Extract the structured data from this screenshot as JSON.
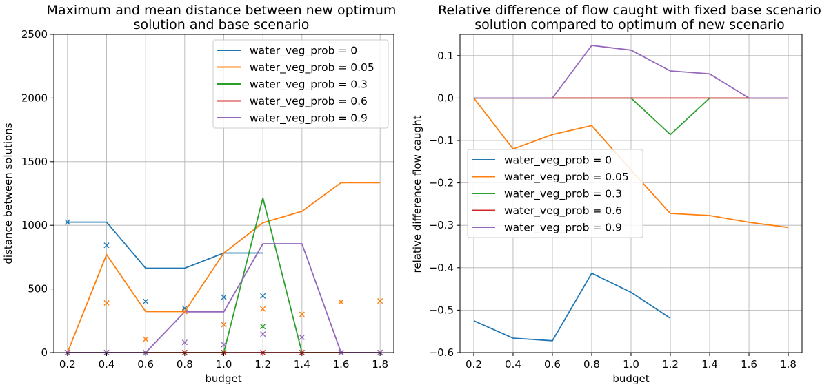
{
  "chart_data": [
    {
      "type": "line",
      "title_lines": [
        "Maximum and mean distance between new optimum",
        "solution and base scenario"
      ],
      "xlabel": "budget",
      "ylabel": "distance between solutions",
      "xlim": [
        0.13,
        1.87
      ],
      "ylim": [
        0,
        2500
      ],
      "xticks": [
        "0.2",
        "0.4",
        "0.6",
        "0.8",
        "1.0",
        "1.2",
        "1.4",
        "1.6",
        "1.8"
      ],
      "yticks": [
        "0",
        "500",
        "1000",
        "1500",
        "2000",
        "2500"
      ],
      "grid": true,
      "legend_position": "top-right",
      "series": [
        {
          "name": "water_veg_prob = 0",
          "color": "#1f77b4",
          "x": [
            0.2,
            0.4,
            0.6,
            0.8,
            1.0,
            1.2
          ],
          "max": [
            1025,
            1025,
            663,
            663,
            782,
            782
          ],
          "mean_x": [
            0.2,
            0.4,
            0.6,
            0.8,
            1.0,
            1.2
          ],
          "mean": [
            1025,
            843,
            402,
            348,
            435,
            445
          ]
        },
        {
          "name": "water_veg_prob = 0.05",
          "color": "#ff7f0e",
          "x": [
            0.2,
            0.4,
            0.6,
            0.8,
            1.0,
            1.2,
            1.4,
            1.6,
            1.8
          ],
          "max": [
            0,
            770,
            322,
            322,
            782,
            1020,
            1110,
            1335,
            1335
          ],
          "mean_x": [
            0.2,
            0.4,
            0.6,
            0.8,
            1.0,
            1.2,
            1.4,
            1.6,
            1.8
          ],
          "mean": [
            0,
            390,
            105,
            322,
            220,
            343,
            300,
            398,
            405
          ]
        },
        {
          "name": "water_veg_prob = 0.3",
          "color": "#2ca02c",
          "x": [
            0.2,
            0.4,
            0.6,
            0.8,
            1.0,
            1.2,
            1.4,
            1.6,
            1.8
          ],
          "max": [
            0,
            0,
            0,
            0,
            0,
            1215,
            0,
            0,
            0
          ],
          "mean_x": [
            0.2,
            0.4,
            0.6,
            0.8,
            1.0,
            1.2,
            1.4,
            1.6,
            1.8
          ],
          "mean": [
            0,
            0,
            0,
            0,
            0,
            205,
            0,
            0,
            0
          ]
        },
        {
          "name": "water_veg_prob = 0.6",
          "color": "#d62728",
          "x": [
            0.2,
            0.4,
            0.6,
            0.8,
            1.0,
            1.2,
            1.4,
            1.6,
            1.8
          ],
          "max": [
            0,
            0,
            0,
            0,
            0,
            0,
            0,
            0,
            0
          ],
          "mean_x": [
            0.2,
            0.4,
            0.6,
            0.8,
            1.0,
            1.2,
            1.4,
            1.6,
            1.8
          ],
          "mean": [
            0,
            0,
            0,
            0,
            0,
            0,
            0,
            0,
            0
          ]
        },
        {
          "name": "water_veg_prob = 0.9",
          "color": "#9467bd",
          "x": [
            0.2,
            0.4,
            0.6,
            0.8,
            1.0,
            1.2,
            1.4,
            1.6,
            1.8
          ],
          "max": [
            0,
            0,
            0,
            320,
            320,
            855,
            855,
            0,
            0
          ],
          "mean_x": [
            0.2,
            0.4,
            0.6,
            0.8,
            1.0,
            1.2,
            1.4,
            1.6,
            1.8
          ],
          "mean": [
            0,
            0,
            0,
            80,
            62,
            145,
            120,
            0,
            0
          ]
        }
      ]
    },
    {
      "type": "line",
      "title_lines": [
        "Relative difference of flow caught with fixed base scenario",
        "solution compared to optimum of new scenario"
      ],
      "xlabel": "budget",
      "ylabel": "relative difference flow caught",
      "xlim": [
        0.13,
        1.87
      ],
      "ylim": [
        -0.6,
        0.15
      ],
      "xticks": [
        "0.2",
        "0.4",
        "0.6",
        "0.8",
        "1.0",
        "1.2",
        "1.4",
        "1.6",
        "1.8"
      ],
      "yticks": [
        "−0.6",
        "−0.5",
        "−0.4",
        "−0.3",
        "−0.2",
        "−0.1",
        "0.0",
        "0.1"
      ],
      "grid": true,
      "legend_position": "center-left",
      "series": [
        {
          "name": "water_veg_prob = 0",
          "color": "#1f77b4",
          "x": [
            0.2,
            0.4,
            0.6,
            0.8,
            1.0,
            1.2
          ],
          "values": [
            -0.525,
            -0.566,
            -0.572,
            -0.413,
            -0.458,
            -0.519
          ]
        },
        {
          "name": "water_veg_prob = 0.05",
          "color": "#ff7f0e",
          "x": [
            0.2,
            0.4,
            0.6,
            0.8,
            1.0,
            1.2,
            1.4,
            1.6,
            1.8
          ],
          "values": [
            0.0,
            -0.12,
            -0.086,
            -0.065,
            -0.17,
            -0.272,
            -0.277,
            -0.293,
            -0.305
          ]
        },
        {
          "name": "water_veg_prob = 0.3",
          "color": "#2ca02c",
          "x": [
            0.2,
            0.4,
            0.6,
            0.8,
            1.0,
            1.2,
            1.4,
            1.6,
            1.8
          ],
          "values": [
            0,
            0,
            0,
            0,
            0,
            -0.086,
            0,
            0,
            0
          ]
        },
        {
          "name": "water_veg_prob = 0.6",
          "color": "#d62728",
          "x": [
            0.2,
            0.4,
            0.6,
            0.8,
            1.0,
            1.2,
            1.4,
            1.6,
            1.8
          ],
          "values": [
            0,
            0,
            0,
            0,
            0,
            0,
            0,
            0,
            0
          ]
        },
        {
          "name": "water_veg_prob = 0.9",
          "color": "#9467bd",
          "x": [
            0.2,
            0.4,
            0.6,
            0.8,
            1.0,
            1.2,
            1.4,
            1.6,
            1.8
          ],
          "values": [
            0,
            0,
            0,
            0.124,
            0.113,
            0.064,
            0.057,
            0,
            0
          ]
        }
      ]
    }
  ]
}
